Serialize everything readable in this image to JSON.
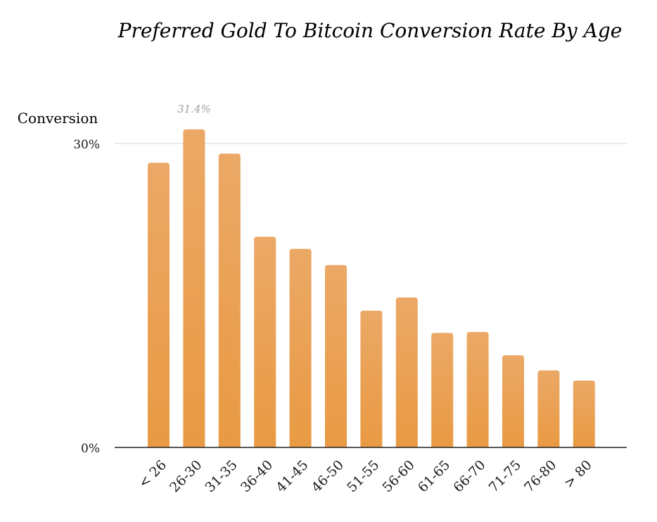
{
  "chart_data": {
    "type": "bar",
    "title": "Preferred Gold To Bitcoin Conversion Rate By Age",
    "xlabel": "",
    "ylabel": "Conversion",
    "categories": [
      "< 26",
      "26-30",
      "31-35",
      "36-40",
      "41-45",
      "46-50",
      "51-55",
      "56-60",
      "61-65",
      "66-70",
      "71-75",
      "76-80",
      "> 80"
    ],
    "values": [
      28.1,
      31.4,
      29.0,
      20.8,
      19.6,
      18.0,
      13.5,
      14.8,
      11.3,
      11.4,
      9.1,
      7.6,
      6.6
    ],
    "ylim": [
      0,
      30
    ],
    "yticks": [
      {
        "value": 0,
        "label": "0%"
      },
      {
        "value": 30,
        "label": "30%"
      }
    ],
    "data_labels": [
      {
        "index": 1,
        "text": "31.4%"
      }
    ],
    "grid": true,
    "legend": false
  },
  "colors": {
    "bar_top": "#eba866",
    "bar_bottom": "#e99a43",
    "gridline": "#d6d6d6",
    "axis": "#222222",
    "text": "#1a1a1a",
    "data_label": "#a0a0a0"
  }
}
